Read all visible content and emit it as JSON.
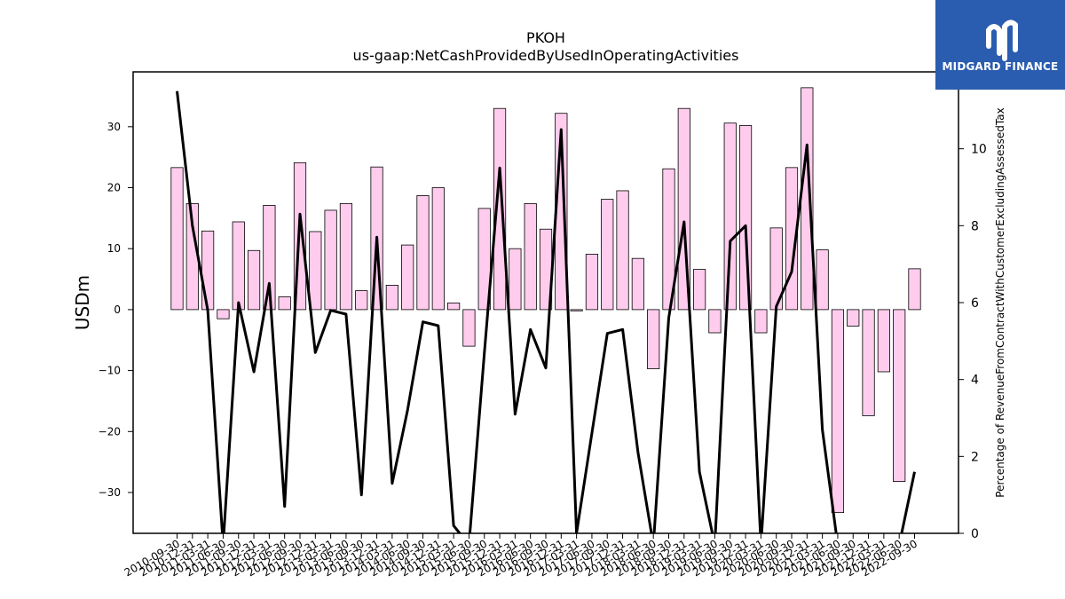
{
  "branding": {
    "name": "MIDGARD FINANCE",
    "color": "#2a5caf"
  },
  "chart_data": {
    "type": "bar",
    "title": "PKOH",
    "subtitle": "us-gaap:NetCashProvidedByUsedInOperatingActivities",
    "ylabel": "USDm",
    "y2label": "Percentage of RevenueFromContractWithCustomerExcludingAssessedTax",
    "ylim": [
      -36.7,
      39.0
    ],
    "y2lim": [
      0,
      12.0
    ],
    "yticks": [
      -30,
      -20,
      -10,
      0,
      10,
      20,
      30
    ],
    "y2ticks": [
      0,
      2,
      4,
      6,
      8,
      10,
      12
    ],
    "bar_color": "#ffccee",
    "line_color": "#000000",
    "categories": [
      "2010-09-30",
      "2010-12-31",
      "2011-03-31",
      "2011-06-30",
      "2011-09-30",
      "2011-12-31",
      "2012-03-31",
      "2012-06-30",
      "2012-09-30",
      "2012-12-31",
      "2013-03-31",
      "2013-06-30",
      "2013-09-30",
      "2013-12-31",
      "2014-03-31",
      "2014-06-30",
      "2014-09-30",
      "2014-12-31",
      "2015-03-31",
      "2015-06-30",
      "2015-09-30",
      "2015-12-31",
      "2016-03-31",
      "2016-06-30",
      "2016-09-30",
      "2016-12-31",
      "2017-03-31",
      "2017-06-30",
      "2017-09-30",
      "2017-12-31",
      "2018-03-31",
      "2018-06-30",
      "2018-09-30",
      "2018-12-31",
      "2019-03-31",
      "2019-06-30",
      "2019-09-30",
      "2019-12-31",
      "2020-03-31",
      "2020-06-30",
      "2020-09-30",
      "2020-12-31",
      "2021-03-31",
      "2021-06-30",
      "2021-09-30",
      "2021-12-31",
      "2022-03-31",
      "2022-06-30",
      "2022-09-30"
    ],
    "series": [
      {
        "type": "bar",
        "values": [
          23.3,
          17.4,
          12.9,
          -1.5,
          14.4,
          9.7,
          17.1,
          2.1,
          24.1,
          12.8,
          16.3,
          17.4,
          3.1,
          23.4,
          4.0,
          10.6,
          18.7,
          20.0,
          1.1,
          -6.0,
          16.6,
          33.0,
          10.0,
          17.4,
          13.2,
          32.2,
          -0.2,
          9.1,
          18.1,
          19.5,
          8.4,
          -9.7,
          23.1,
          33.0,
          6.6,
          -3.8,
          30.6,
          30.2,
          -3.8,
          13.4,
          23.3,
          36.4,
          9.8,
          -33.3,
          -2.7,
          -17.4,
          -10.2,
          -28.2,
          6.7
        ]
      },
      {
        "type": "line",
        "axis": "right",
        "values": [
          11.5,
          8.0,
          5.8,
          -0.3,
          6.0,
          4.2,
          6.5,
          0.7,
          8.3,
          4.7,
          5.8,
          5.7,
          1.0,
          7.7,
          1.3,
          3.2,
          5.5,
          5.4,
          0.2,
          -0.3,
          4.7,
          9.5,
          3.1,
          5.3,
          4.3,
          10.5,
          0.0,
          2.6,
          5.2,
          5.3,
          2.1,
          -0.3,
          5.6,
          8.1,
          1.6,
          -0.3,
          7.6,
          8.0,
          -0.3,
          5.9,
          6.8,
          10.1,
          2.7,
          -0.3,
          -0.3,
          -0.3,
          -0.3,
          -0.3,
          1.6
        ]
      }
    ]
  }
}
